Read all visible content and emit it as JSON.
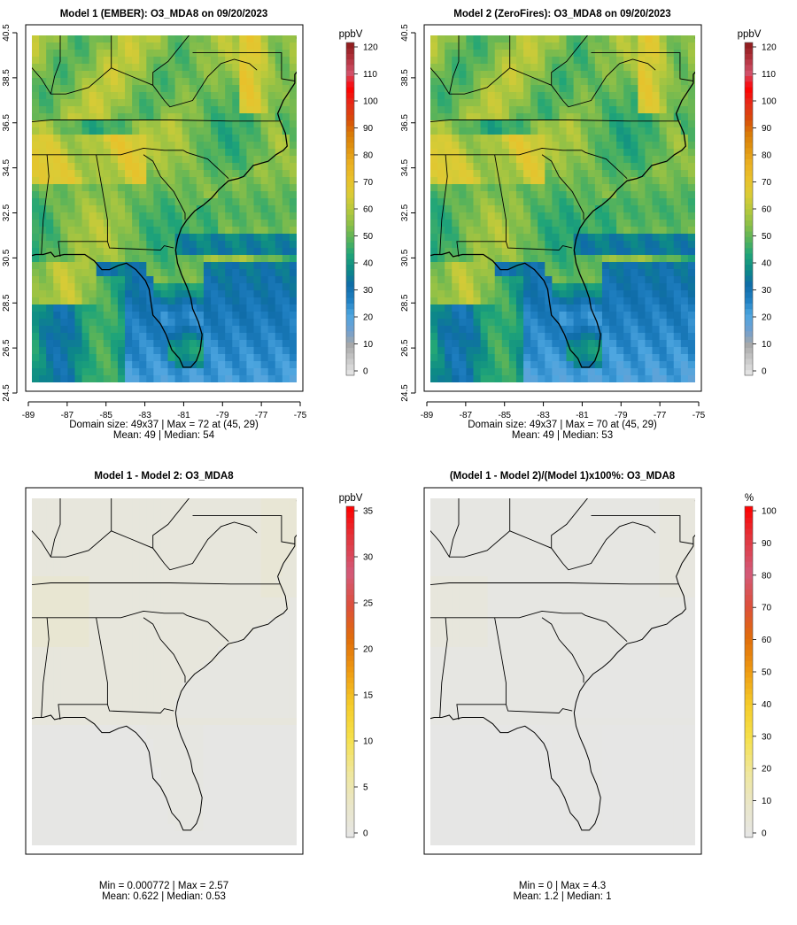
{
  "colors": {
    "conc_ramp": [
      "#e8e8e8",
      "#c9c9c9",
      "#a8a8a8",
      "#6f9fd0",
      "#4da6e0",
      "#1f7fc1",
      "#0f6ca8",
      "#0d8a86",
      "#20a578",
      "#58b35a",
      "#8cbf48",
      "#b8c93c",
      "#dccb35",
      "#e9c02a",
      "#eab022",
      "#e09410",
      "#d97a08",
      "#d84a0a",
      "#e62a1a",
      "#ff0000",
      "#d0506a",
      "#b0303a",
      "#8b1a1a"
    ],
    "diff_ramp": [
      "#e6e6e6",
      "#e9e6c8",
      "#f0e79a",
      "#f5e04a",
      "#f5cc2a",
      "#ee9c12",
      "#e06d0a",
      "#dd4f3b",
      "#d35a7a",
      "#e03840",
      "#ff0000"
    ],
    "borders": "#000000"
  },
  "panels": [
    {
      "id": "model1",
      "title": "Model 1 (EMBER): O3_MDA8 on 09/20/2023",
      "caption1": "Domain size: 49x37 | Max = 72 at (45, 29)",
      "caption2": "Mean: 49 |  Median: 54",
      "legend_unit": "ppbV",
      "legend_ticks": [
        "0",
        "10",
        "20",
        "30",
        "40",
        "50",
        "60",
        "70",
        "80",
        "90",
        "100",
        "110",
        "120"
      ],
      "legend_range": [
        0,
        120
      ],
      "x_ticks": [
        "-89",
        "-87",
        "-85",
        "-83",
        "-81",
        "-79",
        "-77",
        "-75"
      ],
      "y_ticks": [
        "24.5",
        "26.5",
        "28.5",
        "30.5",
        "32.5",
        "34.5",
        "36.5",
        "38.5",
        "40.5"
      ],
      "stats": {
        "max": 72,
        "mean": 49,
        "median": 54
      }
    },
    {
      "id": "model2",
      "title": "Model 2 (ZeroFires): O3_MDA8 on 09/20/2023",
      "caption1": "Domain size: 49x37 | Max = 70 at (45, 29)",
      "caption2": "Mean: 49 |  Median: 53",
      "legend_unit": "ppbV",
      "legend_ticks": [
        "0",
        "10",
        "20",
        "30",
        "40",
        "50",
        "60",
        "70",
        "80",
        "90",
        "100",
        "110",
        "120"
      ],
      "legend_range": [
        0,
        120
      ],
      "x_ticks": [
        "-89",
        "-87",
        "-85",
        "-83",
        "-81",
        "-79",
        "-77",
        "-75"
      ],
      "y_ticks": [
        "24.5",
        "26.5",
        "28.5",
        "30.5",
        "32.5",
        "34.5",
        "36.5",
        "38.5",
        "40.5"
      ],
      "stats": {
        "max": 70,
        "mean": 49,
        "median": 53
      }
    },
    {
      "id": "diff",
      "title": "Model 1 - Model 2: O3_MDA8",
      "caption1": "Min = 0.000772 | Max = 2.57",
      "caption2": "Mean: 0.622 |  Median: 0.53",
      "legend_unit": "ppbV",
      "legend_ticks": [
        "0",
        "5",
        "10",
        "15",
        "20",
        "25",
        "30",
        "35"
      ],
      "legend_range": [
        0,
        35
      ],
      "stats": {
        "min": 0.000772,
        "max": 2.57,
        "mean": 0.622,
        "median": 0.53
      }
    },
    {
      "id": "pct",
      "title": "(Model 1 - Model 2)/(Model 1)x100%: O3_MDA8",
      "caption1": "Min = 0 | Max = 4.3",
      "caption2": "Mean: 1.2 |  Median: 1",
      "legend_unit": "%",
      "legend_ticks": [
        "0",
        "10",
        "20",
        "30",
        "40",
        "50",
        "60",
        "70",
        "80",
        "90",
        "100"
      ],
      "legend_range": [
        0,
        100
      ],
      "stats": {
        "min": 0,
        "max": 4.3,
        "mean": 1.2,
        "median": 1
      }
    }
  ],
  "chart_data": [
    {
      "type": "heatmap",
      "title": "Model 1 (EMBER): O3_MDA8 on 09/20/2023",
      "xlabel": "",
      "ylabel": "",
      "xlim": [
        -89,
        -75
      ],
      "ylim": [
        24.5,
        40.5
      ],
      "zlim": [
        0,
        120
      ],
      "unit": "ppbV",
      "grid": "49x37",
      "max": 72,
      "max_at": [
        45,
        29
      ],
      "mean": 49,
      "median": 54
    },
    {
      "type": "heatmap",
      "title": "Model 2 (ZeroFires): O3_MDA8 on 09/20/2023",
      "xlabel": "",
      "ylabel": "",
      "xlim": [
        -89,
        -75
      ],
      "ylim": [
        24.5,
        40.5
      ],
      "zlim": [
        0,
        120
      ],
      "unit": "ppbV",
      "grid": "49x37",
      "max": 70,
      "max_at": [
        45,
        29
      ],
      "mean": 49,
      "median": 53
    },
    {
      "type": "heatmap",
      "title": "Model 1 - Model 2: O3_MDA8",
      "zlim": [
        0,
        35
      ],
      "unit": "ppbV",
      "min": 0.000772,
      "max": 2.57,
      "mean": 0.622,
      "median": 0.53
    },
    {
      "type": "heatmap",
      "title": "(Model 1 - Model 2)/(Model 1)x100%: O3_MDA8",
      "zlim": [
        0,
        100
      ],
      "unit": "%",
      "min": 0,
      "max": 4.3,
      "mean": 1.2,
      "median": 1
    }
  ]
}
